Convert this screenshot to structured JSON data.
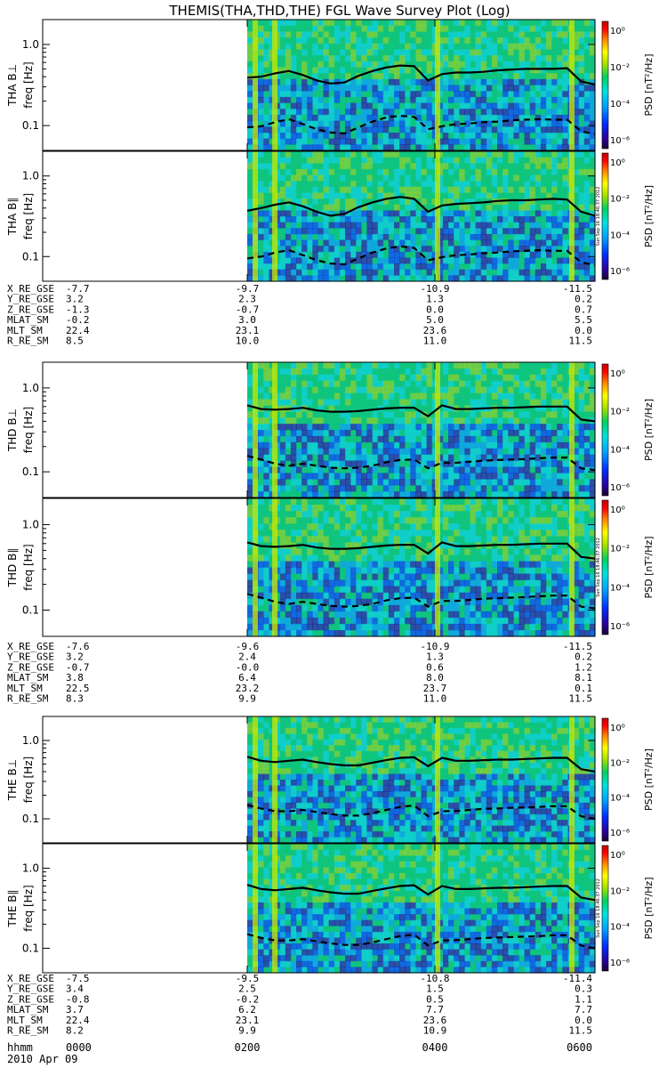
{
  "title": "THEMIS(THA,THD,THE) FGL Wave Survey Plot (Log)",
  "stamp": "Sun Sep 16 18:46:37 2012",
  "colorbar": {
    "label": "PSD [nT²/Hz]",
    "ticks": [
      "10⁰",
      "10⁻²",
      "10⁻⁴",
      "10⁻⁶"
    ]
  },
  "freq_label": "freq [Hz]",
  "chart_data": {
    "type": "heatmap",
    "x": [
      "0000",
      "0200",
      "0400",
      "0600"
    ],
    "y_scale": "log",
    "yticks": [
      "1.0",
      "0.1"
    ],
    "panels": [
      {
        "probe": "THA",
        "component": "B⊥",
        "ylabel": "THA B⊥",
        "data_start": "~0147",
        "solid_line_hz": [
          0.39,
          0.4,
          0.44,
          0.47,
          0.42,
          0.36,
          0.33,
          0.34,
          0.41,
          0.47,
          0.52,
          0.55,
          0.54,
          0.36,
          0.43,
          0.45,
          0.45,
          0.46,
          0.48,
          0.49,
          0.5,
          0.5,
          0.5,
          0.51,
          0.35,
          0.32
        ],
        "dashed_line_hz": [
          0.095,
          0.098,
          0.11,
          0.12,
          0.104,
          0.09,
          0.082,
          0.08,
          0.095,
          0.112,
          0.126,
          0.132,
          0.128,
          0.09,
          0.098,
          0.104,
          0.106,
          0.11,
          0.112,
          0.116,
          0.118,
          0.12,
          0.118,
          0.118,
          0.085,
          0.078
        ]
      },
      {
        "probe": "THA",
        "component": "B∥",
        "ylabel": "THA B∥",
        "data_start": "~0147",
        "solid_line_hz": [
          0.37,
          0.4,
          0.44,
          0.47,
          0.42,
          0.36,
          0.32,
          0.34,
          0.41,
          0.47,
          0.52,
          0.55,
          0.52,
          0.36,
          0.43,
          0.45,
          0.46,
          0.47,
          0.49,
          0.5,
          0.5,
          0.51,
          0.52,
          0.51,
          0.36,
          0.32
        ],
        "dashed_line_hz": [
          0.095,
          0.1,
          0.112,
          0.12,
          0.104,
          0.09,
          0.082,
          0.08,
          0.095,
          0.112,
          0.126,
          0.134,
          0.128,
          0.09,
          0.098,
          0.104,
          0.106,
          0.11,
          0.112,
          0.116,
          0.118,
          0.12,
          0.118,
          0.118,
          0.085,
          0.078
        ]
      },
      {
        "probe": "THD",
        "component": "B⊥",
        "ylabel": "THD B⊥",
        "data_start": "~0147",
        "solid_line_hz": [
          0.62,
          0.56,
          0.55,
          0.56,
          0.58,
          0.54,
          0.52,
          0.52,
          0.53,
          0.55,
          0.57,
          0.58,
          0.58,
          0.46,
          0.62,
          0.56,
          0.56,
          0.57,
          0.58,
          0.58,
          0.59,
          0.6,
          0.6,
          0.6,
          0.42,
          0.4
        ],
        "dashed_line_hz": [
          0.155,
          0.14,
          0.125,
          0.118,
          0.125,
          0.118,
          0.112,
          0.11,
          0.112,
          0.118,
          0.13,
          0.138,
          0.14,
          0.11,
          0.128,
          0.128,
          0.132,
          0.136,
          0.138,
          0.14,
          0.142,
          0.145,
          0.148,
          0.148,
          0.11,
          0.105
        ]
      },
      {
        "probe": "THD",
        "component": "B∥",
        "ylabel": "THD B∥",
        "data_start": "~0147",
        "solid_line_hz": [
          0.62,
          0.56,
          0.55,
          0.56,
          0.58,
          0.54,
          0.52,
          0.52,
          0.53,
          0.55,
          0.57,
          0.58,
          0.58,
          0.46,
          0.62,
          0.56,
          0.56,
          0.57,
          0.58,
          0.58,
          0.59,
          0.6,
          0.6,
          0.6,
          0.42,
          0.4
        ],
        "dashed_line_hz": [
          0.155,
          0.14,
          0.125,
          0.118,
          0.125,
          0.118,
          0.112,
          0.11,
          0.112,
          0.118,
          0.13,
          0.138,
          0.14,
          0.11,
          0.128,
          0.128,
          0.132,
          0.136,
          0.138,
          0.14,
          0.142,
          0.145,
          0.148,
          0.148,
          0.11,
          0.105
        ]
      },
      {
        "probe": "THE",
        "component": "B⊥",
        "ylabel": "THE B⊥",
        "data_start": "~0147",
        "solid_line_hz": [
          0.62,
          0.55,
          0.53,
          0.55,
          0.57,
          0.53,
          0.5,
          0.48,
          0.48,
          0.52,
          0.56,
          0.6,
          0.61,
          0.47,
          0.6,
          0.55,
          0.55,
          0.56,
          0.57,
          0.57,
          0.58,
          0.59,
          0.6,
          0.6,
          0.43,
          0.4
        ],
        "dashed_line_hz": [
          0.15,
          0.135,
          0.125,
          0.125,
          0.13,
          0.122,
          0.115,
          0.11,
          0.11,
          0.118,
          0.13,
          0.142,
          0.148,
          0.108,
          0.125,
          0.126,
          0.13,
          0.134,
          0.136,
          0.138,
          0.14,
          0.142,
          0.145,
          0.145,
          0.108,
          0.1
        ]
      },
      {
        "probe": "THE",
        "component": "B∥",
        "ylabel": "THE B∥",
        "data_start": "~0147",
        "solid_line_hz": [
          0.62,
          0.55,
          0.53,
          0.55,
          0.57,
          0.53,
          0.5,
          0.48,
          0.48,
          0.52,
          0.56,
          0.6,
          0.61,
          0.47,
          0.6,
          0.55,
          0.55,
          0.56,
          0.57,
          0.57,
          0.58,
          0.59,
          0.6,
          0.6,
          0.43,
          0.4
        ],
        "dashed_line_hz": [
          0.15,
          0.135,
          0.125,
          0.125,
          0.13,
          0.122,
          0.115,
          0.11,
          0.11,
          0.118,
          0.13,
          0.142,
          0.148,
          0.108,
          0.125,
          0.126,
          0.13,
          0.134,
          0.136,
          0.138,
          0.14,
          0.142,
          0.145,
          0.145,
          0.108,
          0.1
        ]
      }
    ],
    "colorbar_scale": "log",
    "colorbar_range": [
      "10⁻⁶",
      "10⁰"
    ]
  },
  "ephemeris": [
    {
      "probe": "THA",
      "rows": [
        {
          "label": "X_RE_GSE",
          "values": [
            "-7.7",
            "-9.7",
            "-10.9",
            "-11.5"
          ]
        },
        {
          "label": "Y_RE_GSE",
          "values": [
            "3.2",
            "2.3",
            "1.3",
            "0.2"
          ]
        },
        {
          "label": "Z_RE_GSE",
          "values": [
            "-1.3",
            "-0.7",
            "0.0",
            "0.7"
          ]
        },
        {
          "label": "MLAT_SM",
          "values": [
            "-0.2",
            "3.0",
            "5.0",
            "5.5"
          ]
        },
        {
          "label": "MLT_SM",
          "values": [
            "22.4",
            "23.1",
            "23.6",
            "0.0"
          ]
        },
        {
          "label": "R_RE_SM",
          "values": [
            "8.5",
            "10.0",
            "11.0",
            "11.5"
          ]
        }
      ]
    },
    {
      "probe": "THD",
      "rows": [
        {
          "label": "X_RE_GSE",
          "values": [
            "-7.6",
            "-9.6",
            "-10.9",
            "-11.5"
          ]
        },
        {
          "label": "Y_RE_GSE",
          "values": [
            "3.2",
            "2.4",
            "1.3",
            "0.2"
          ]
        },
        {
          "label": "Z_RE_GSE",
          "values": [
            "-0.7",
            "-0.0",
            "0.6",
            "1.2"
          ]
        },
        {
          "label": "MLAT_SM",
          "values": [
            "3.8",
            "6.4",
            "8.0",
            "8.1"
          ]
        },
        {
          "label": "MLT_SM",
          "values": [
            "22.5",
            "23.2",
            "23.7",
            "0.1"
          ]
        },
        {
          "label": "R_RE_SM",
          "values": [
            "8.3",
            "9.9",
            "11.0",
            "11.5"
          ]
        }
      ]
    },
    {
      "probe": "THE",
      "rows": [
        {
          "label": "X_RE_GSE",
          "values": [
            "-7.5",
            "-9.5",
            "-10.8",
            "-11.4"
          ]
        },
        {
          "label": "Y_RE_GSE",
          "values": [
            "3.4",
            "2.5",
            "1.5",
            "0.3"
          ]
        },
        {
          "label": "Z_RE_GSE",
          "values": [
            "-0.8",
            "-0.2",
            "0.5",
            "1.1"
          ]
        },
        {
          "label": "MLAT_SM",
          "values": [
            "3.7",
            "6.2",
            "7.7",
            "7.7"
          ]
        },
        {
          "label": "MLT_SM",
          "values": [
            "22.4",
            "23.1",
            "23.6",
            "0.0"
          ]
        },
        {
          "label": "R_RE_SM",
          "values": [
            "8.2",
            "9.9",
            "10.9",
            "11.5"
          ]
        }
      ]
    }
  ],
  "time_axis": {
    "label": "hhmm",
    "values": [
      "0000",
      "0200",
      "0400",
      "0600"
    ],
    "date": "2010 Apr 09"
  },
  "colors": {
    "spectrogram_bg": "#26b4a8",
    "line": "#000000",
    "colorscale": [
      "#1a0030",
      "#2a00a0",
      "#0030ff",
      "#00a0ff",
      "#00e0e0",
      "#00d060",
      "#a0e000",
      "#ffff00",
      "#ff8000",
      "#ff0000",
      "#c00000"
    ]
  }
}
